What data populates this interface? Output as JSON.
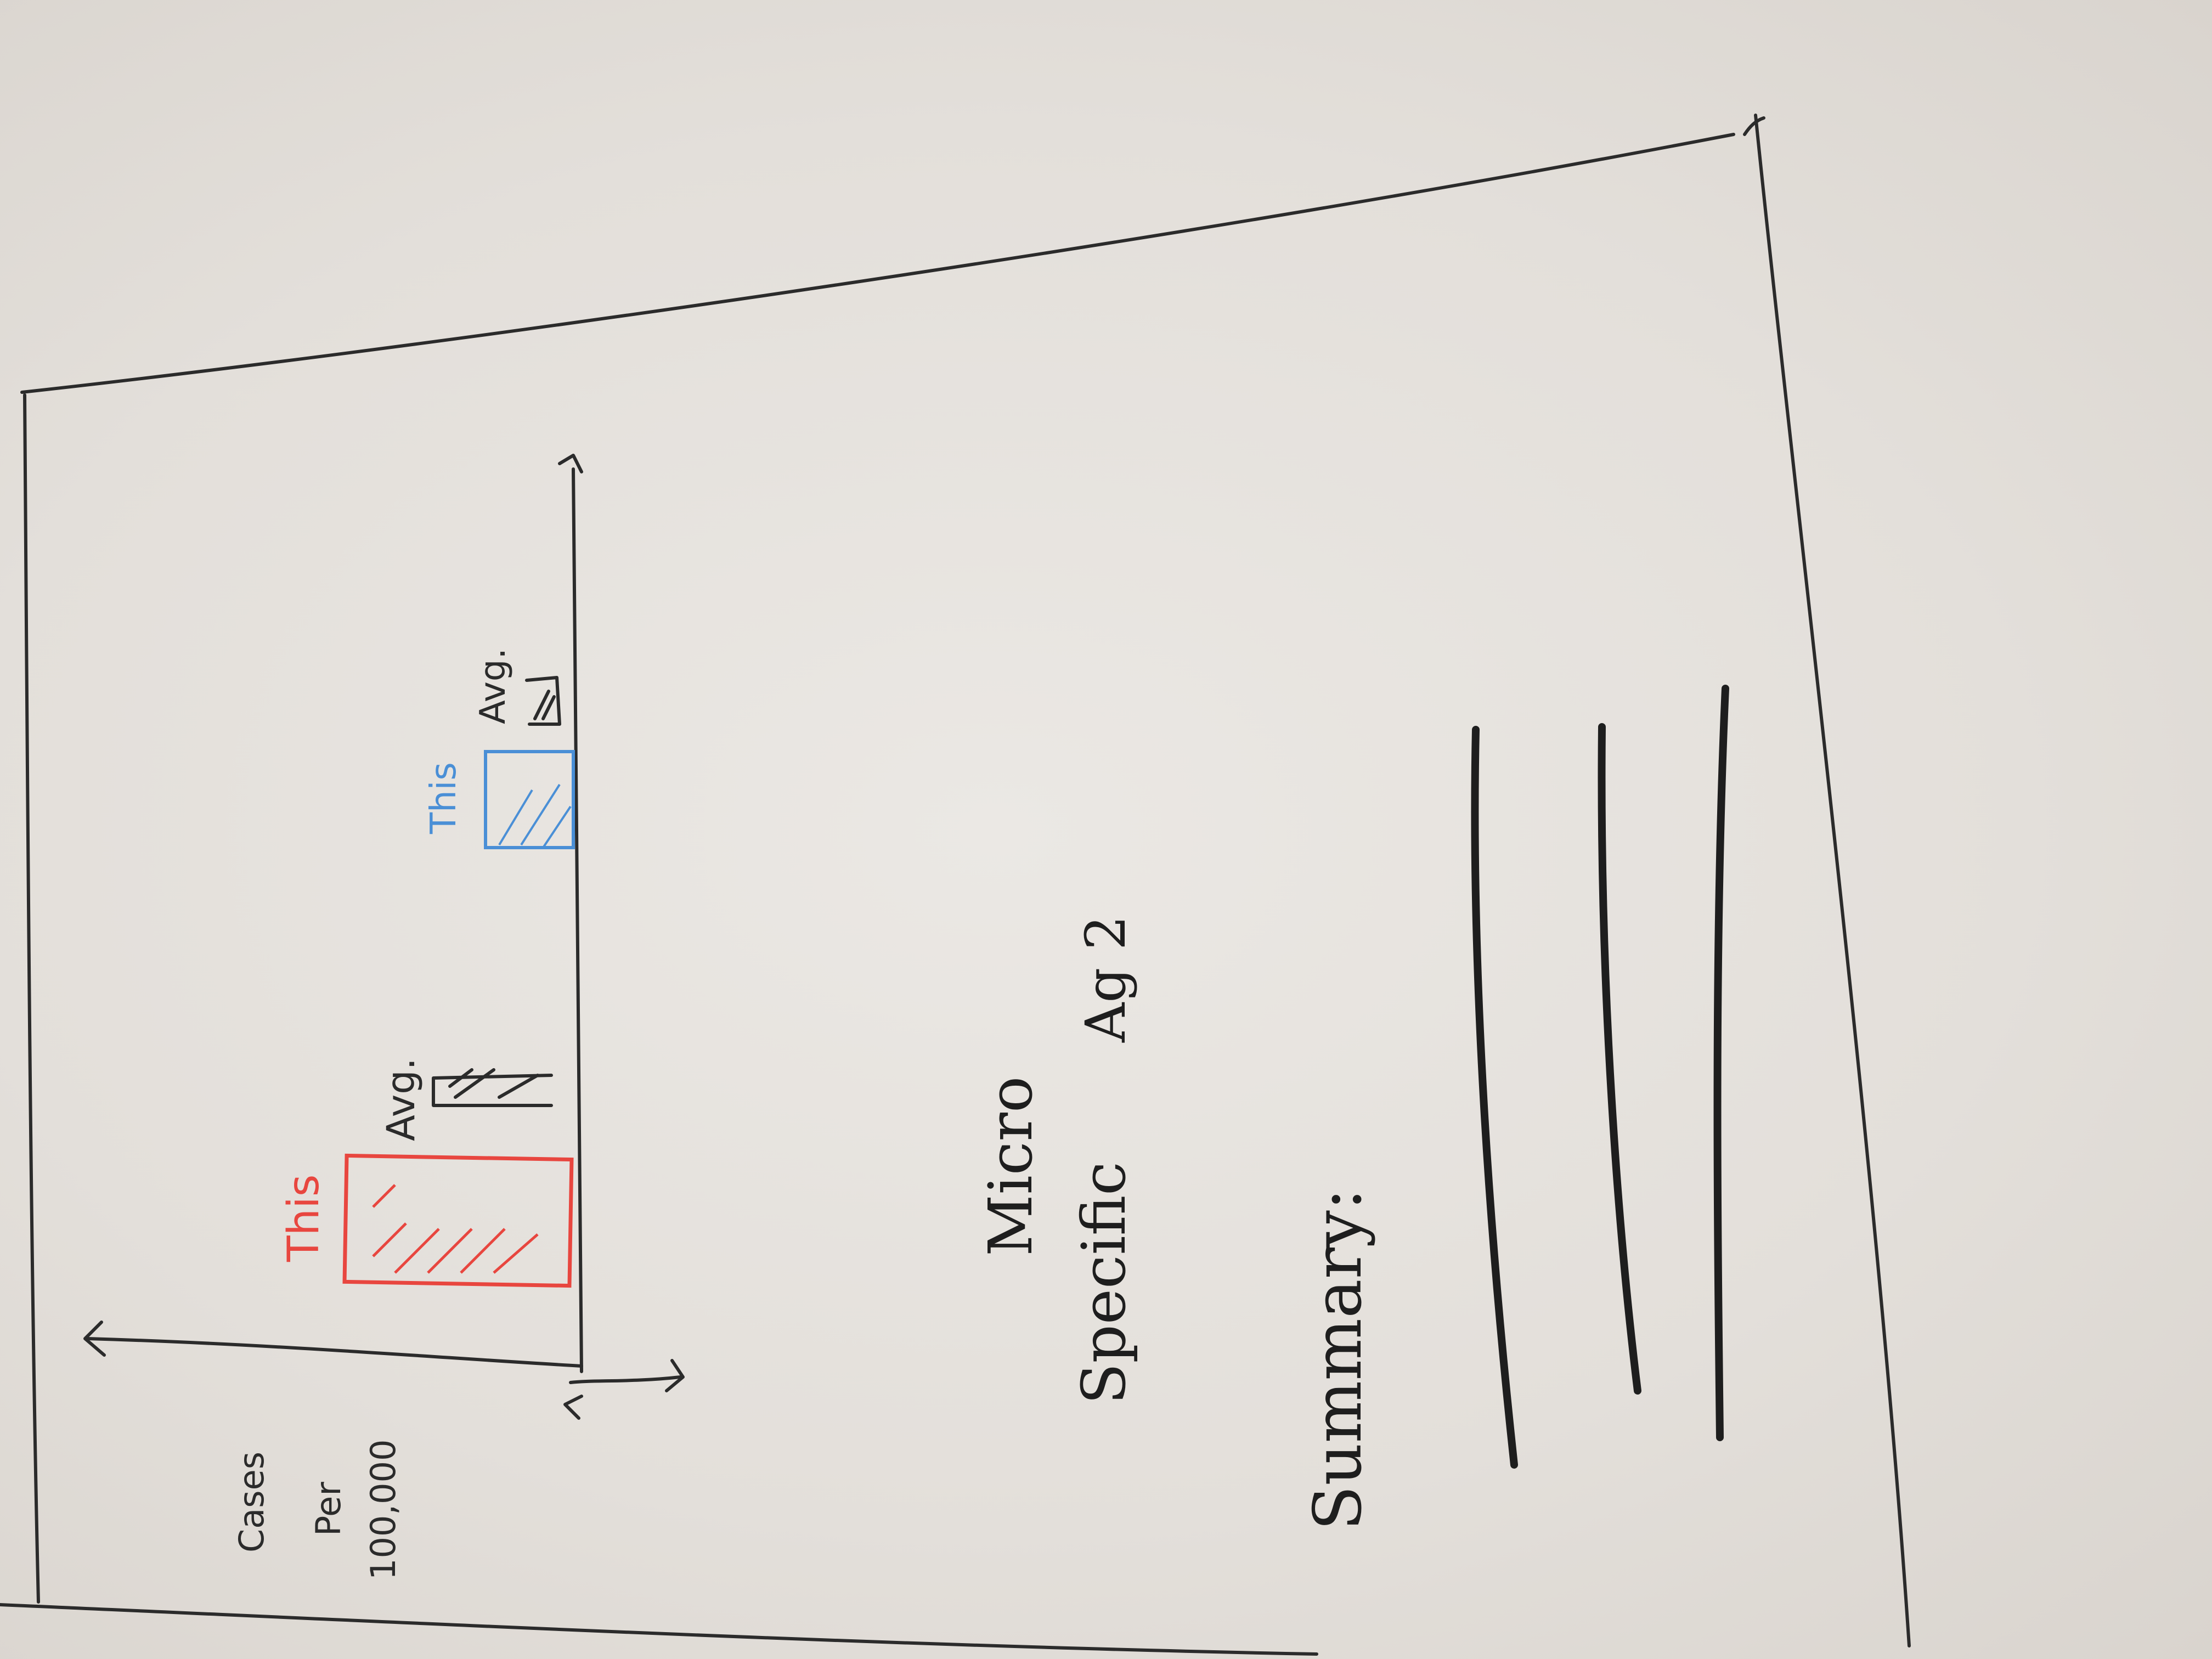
{
  "sketch": {
    "y_axis_label_line1": "Cases",
    "y_axis_label_line2": "Per",
    "y_axis_label_line3": "100,000",
    "panel_title_line1": "Micro",
    "panel_title_line2": "Specific",
    "panel_title_line3": "Ag 2",
    "summary_label": "Summary:"
  },
  "chart_data": {
    "type": "bar",
    "groups": [
      {
        "bars": [
          {
            "label": "This",
            "color": "#e8463f",
            "relative_height": 0.75
          },
          {
            "label": "Avg.",
            "color": "#2b2b2b",
            "relative_height": 0.45
          }
        ]
      },
      {
        "bars": [
          {
            "label": "This",
            "color": "#4a8fd6",
            "relative_height": 0.3
          },
          {
            "label": "Avg.",
            "color": "#2b2b2b",
            "relative_height": 0.12
          }
        ]
      }
    ],
    "ylabel": "Cases Per 100,000",
    "xlabel": "",
    "legend": "none"
  },
  "colors": {
    "this_primary": "#e8463f",
    "this_secondary": "#4a8fd6",
    "ink": "#2b2b2b"
  }
}
